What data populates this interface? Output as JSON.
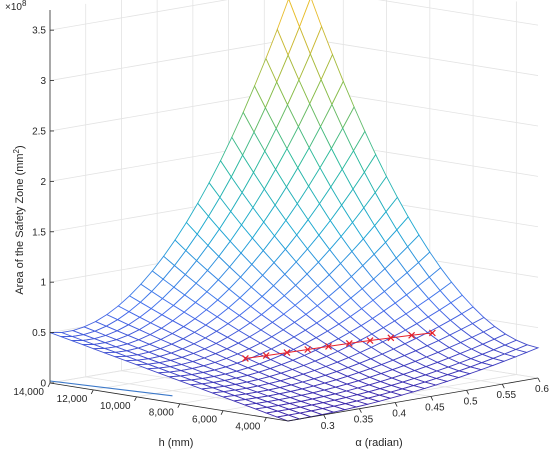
{
  "chart_data": {
    "type": "surface3d",
    "title": "",
    "zlabel": "Area of the Safety Zone (mm",
    "zlabel_sup": "2",
    "zlabel_close": ")",
    "xlabel": "h (mm)",
    "ylabel": "α (radian)",
    "zlabel_exponent_base": "×10",
    "zlabel_exponent_power": "8",
    "xlim": [
      3000,
      14000
    ],
    "ylim": [
      0.25,
      0.6
    ],
    "zlim": [
      0,
      3.7
    ],
    "z_scale": 100000000,
    "x_ticks": [
      "4,000",
      "6,000",
      "8,000",
      "10,000",
      "12,000",
      "14,000"
    ],
    "x_tick_values": [
      4000,
      6000,
      8000,
      10000,
      12000,
      14000
    ],
    "y_ticks": [
      "0.3",
      "0.35",
      "0.4",
      "0.45",
      "0.5",
      "0.55",
      "0.6"
    ],
    "y_tick_values": [
      0.3,
      0.35,
      0.4,
      0.45,
      0.5,
      0.55,
      0.6
    ],
    "z_ticks": [
      "0",
      "0.5",
      "1",
      "1.5",
      "2",
      "2.5",
      "3",
      "3.5"
    ],
    "z_tick_values": [
      0,
      0.5,
      1,
      1.5,
      2,
      2.5,
      3,
      3.5
    ],
    "grid": true,
    "colormap": [
      "#3e26a8",
      "#4771ee",
      "#1fa9d4",
      "#2dbb9e",
      "#8cbd45",
      "#e6b92f",
      "#f8e21f"
    ],
    "surface_corners": {
      "h_14000_alpha_0.25": 0.5,
      "h_14000_alpha_0.6": 3.7,
      "h_3000_alpha_0.25": 0.0,
      "h_3000_alpha_0.6": 0.3
    },
    "marker_series": {
      "name": "",
      "color": "#e6202b",
      "marker": "x",
      "alpha": [
        0.36,
        0.38,
        0.4,
        0.42,
        0.44,
        0.46,
        0.48,
        0.5,
        0.52,
        0.54
      ],
      "h": [
        8600,
        8300,
        8000,
        7700,
        7400,
        7100,
        6800,
        6500,
        6200,
        5900
      ]
    },
    "floor_line": {
      "color": "#3b78c9",
      "h_range": [
        14000,
        9000
      ],
      "alpha_range": [
        0.25,
        0.27
      ]
    }
  }
}
